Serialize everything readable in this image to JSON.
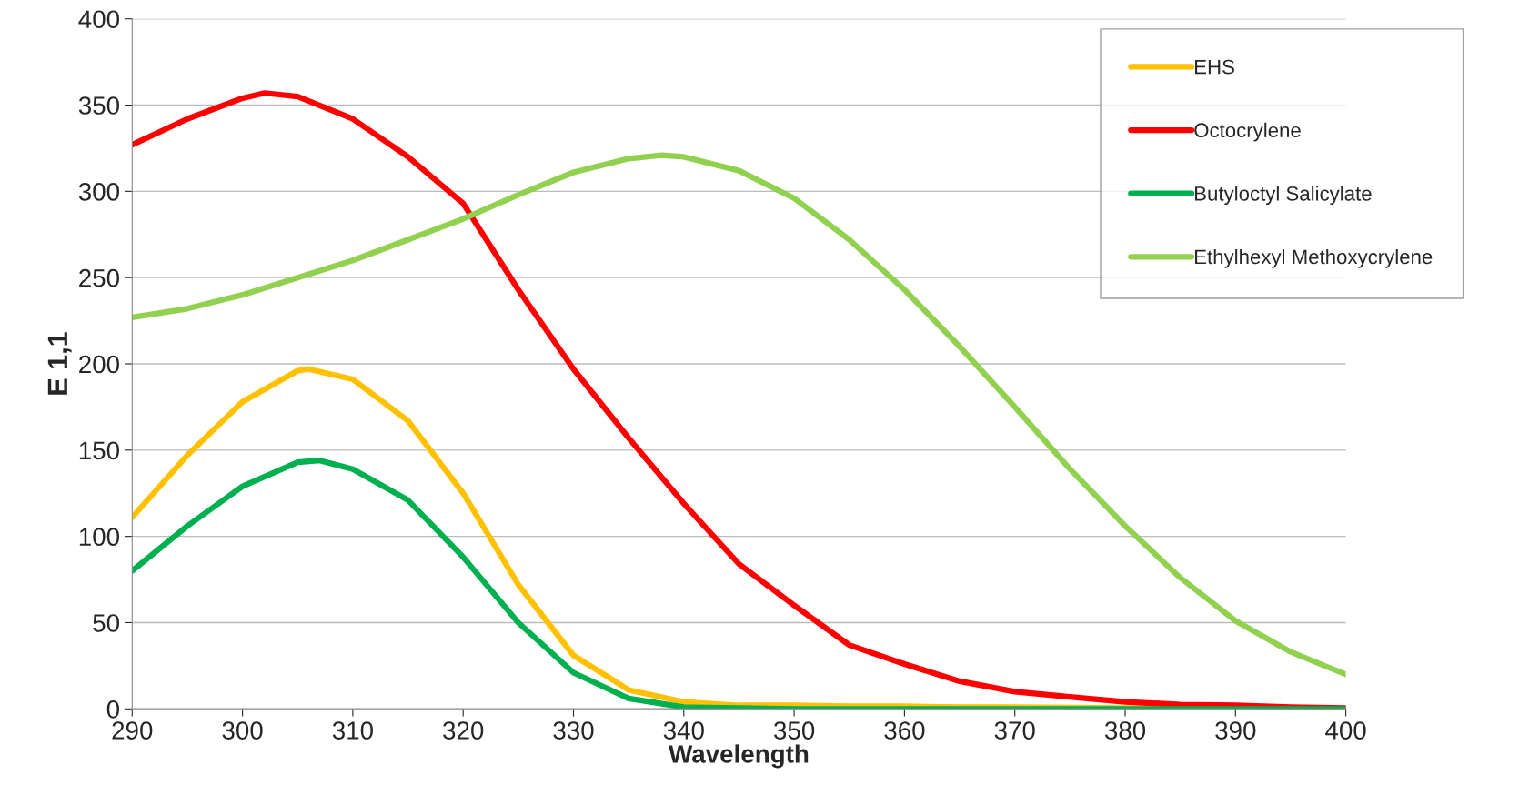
{
  "chart_data": {
    "type": "line",
    "xlabel": "Wavelength",
    "ylabel": "E 1,1",
    "xlim": [
      290,
      400
    ],
    "ylim": [
      0,
      400
    ],
    "xticks": [
      290,
      300,
      310,
      320,
      330,
      340,
      350,
      360,
      370,
      380,
      390,
      400
    ],
    "yticks": [
      0,
      50,
      100,
      150,
      200,
      250,
      300,
      350,
      400
    ],
    "grid": "y",
    "legend": "top right",
    "marker": "none",
    "line_style": "solid",
    "series": [
      {
        "name": "EHS",
        "color": "#ffc000",
        "x": [
          290,
          295,
          300,
          305,
          306,
          310,
          315,
          320,
          325,
          330,
          335,
          340,
          345,
          350,
          355,
          360,
          365,
          370,
          380,
          390,
          400
        ],
        "values": [
          111,
          147,
          178,
          196,
          197,
          191,
          167,
          125,
          72,
          31,
          11,
          4,
          2,
          2,
          1.5,
          1.5,
          1,
          1,
          0.5,
          0.5,
          0
        ]
      },
      {
        "name": "Octocrylene",
        "color": "#ff0000",
        "x": [
          290,
          295,
          300,
          302,
          305,
          310,
          315,
          320,
          325,
          330,
          335,
          340,
          345,
          350,
          355,
          360,
          365,
          370,
          375,
          380,
          385,
          390,
          395,
          400
        ],
        "values": [
          327,
          342,
          354,
          357,
          355,
          342,
          320,
          293,
          243,
          197,
          157,
          119,
          84,
          60,
          37,
          26,
          16,
          10,
          7,
          4,
          2.5,
          2,
          1,
          0.5
        ]
      },
      {
        "name": "Butyloctyl Salicylate",
        "color": "#00b050",
        "x": [
          290,
          295,
          300,
          305,
          307,
          310,
          315,
          320,
          325,
          330,
          335,
          340,
          345,
          350,
          400
        ],
        "values": [
          80,
          106,
          129,
          143,
          144,
          139,
          121,
          88,
          50,
          21,
          6,
          1,
          0.5,
          0,
          0
        ]
      },
      {
        "name": "Ethylhexyl Methoxycrylene",
        "color": "#92d050",
        "x": [
          290,
          295,
          300,
          305,
          310,
          315,
          320,
          325,
          330,
          335,
          338,
          340,
          345,
          350,
          355,
          360,
          365,
          370,
          375,
          380,
          385,
          390,
          395,
          400
        ],
        "values": [
          227,
          232,
          240,
          250,
          260,
          272,
          284,
          298,
          311,
          319,
          321,
          320,
          312,
          296,
          272,
          243,
          210,
          175,
          139,
          106,
          76,
          51,
          33,
          20
        ]
      }
    ]
  }
}
